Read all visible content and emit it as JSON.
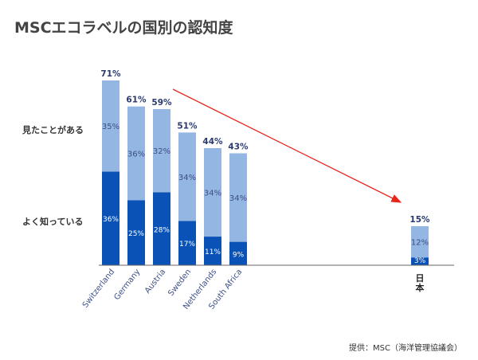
{
  "header": {
    "title": "MSCエコラベルの国別の認知度"
  },
  "legend": {
    "seen": "見たことがある",
    "know": "よく知っている"
  },
  "source": "提供：MSC（海洋管理協議会）",
  "colors": {
    "known": "#0a52b5",
    "seen": "#94b6e2",
    "arrow": "#e8261c",
    "axis": "#666666",
    "total_label": "#2a3a6e"
  },
  "chart_data": {
    "type": "bar",
    "stacked": true,
    "title": "MSCエコラベルの国別の認知度",
    "categories": [
      "Switzerland",
      "Germany",
      "Austria",
      "Sweden",
      "Netherlands",
      "South Africa",
      "日本"
    ],
    "series": [
      {
        "name": "よく知っている",
        "values": [
          36,
          25,
          28,
          17,
          11,
          9,
          3
        ]
      },
      {
        "name": "見たことがある",
        "values": [
          35,
          36,
          32,
          34,
          34,
          34,
          12
        ]
      }
    ],
    "totals": [
      71,
      61,
      59,
      51,
      44,
      43,
      15
    ],
    "value_suffix": "%",
    "ylim": [
      0,
      71
    ],
    "grid": false,
    "annotation": "trend arrow from Austria toward 日本"
  }
}
